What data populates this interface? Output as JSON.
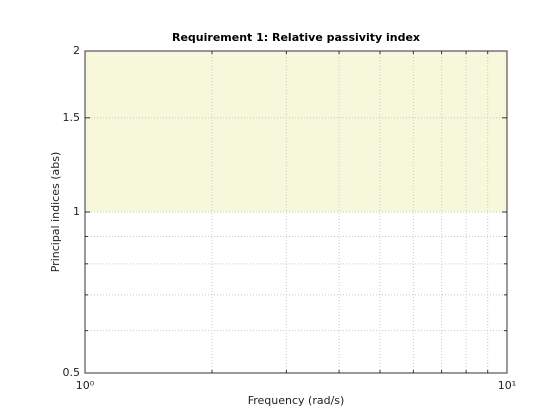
{
  "chart_data": {
    "type": "region",
    "title": "Requirement 1: Relative passivity index",
    "xlabel": "Frequency (rad/s)",
    "ylabel": "Principal indices (abs)",
    "xscale": "log",
    "yscale": "log",
    "xlim": [
      1,
      10
    ],
    "ylim": [
      0.5,
      2
    ],
    "xticks": [
      {
        "value": 1,
        "label": "10⁰"
      },
      {
        "value": 10,
        "label": "10¹"
      }
    ],
    "yticks": [
      0.5,
      1,
      1.5,
      2
    ],
    "xminorticks": [
      2,
      3,
      4,
      5,
      6,
      7,
      8,
      9
    ],
    "yminorticks": [
      0.6,
      0.7,
      0.8,
      0.9
    ],
    "grid": true,
    "regions": [
      {
        "y": [
          1,
          2
        ],
        "color": "#f7f7dc"
      }
    ]
  }
}
